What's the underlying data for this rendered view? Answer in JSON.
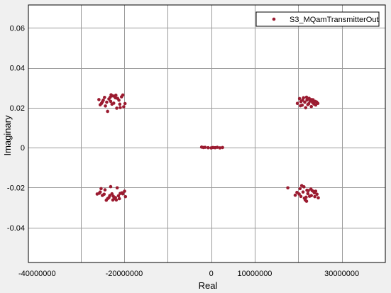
{
  "chart_data": {
    "type": "scatter",
    "title": "",
    "xlabel": "Real",
    "ylabel": "Imaginary",
    "xlim": [
      -42000000,
      40000000
    ],
    "ylim": [
      -0.0575,
      0.0715
    ],
    "grid": true,
    "legend_position": "top-right",
    "xticks": [
      -40000000,
      -20000000,
      0,
      10000000,
      30000000
    ],
    "xtick_labels": [
      "-40000000",
      "-20000000",
      "0",
      "10000000",
      "30000000"
    ],
    "xgrid": [
      -30000000,
      -20000000,
      -10000000,
      0,
      10000000,
      20000000,
      30000000
    ],
    "yticks": [
      -0.04,
      -0.02,
      0,
      0.02,
      0.04,
      0.06
    ],
    "ytick_labels": [
      "-0.04",
      "-0.02",
      "0",
      "0.02",
      "0.04",
      "0.06"
    ],
    "series": [
      {
        "name": "S3_MQamTransmitterOut",
        "color": "#9b1b30",
        "points": [
          [
            -25800000,
            0.0241
          ],
          [
            -25200000,
            0.0222
          ],
          [
            -24800000,
            0.0238
          ],
          [
            -25500000,
            0.0215
          ],
          [
            -24300000,
            0.0209
          ],
          [
            -24000000,
            0.0228
          ],
          [
            -23800000,
            0.0182
          ],
          [
            -23200000,
            0.0253
          ],
          [
            -23000000,
            0.0265
          ],
          [
            -22700000,
            0.026
          ],
          [
            -22300000,
            0.0258
          ],
          [
            -23100000,
            0.0232
          ],
          [
            -22800000,
            0.0218
          ],
          [
            -22000000,
            0.025
          ],
          [
            -21700000,
            0.0198
          ],
          [
            -21500000,
            0.0247
          ],
          [
            -21200000,
            0.0238
          ],
          [
            -21000000,
            0.0218
          ],
          [
            -20600000,
            0.0255
          ],
          [
            -20300000,
            0.0264
          ],
          [
            -20900000,
            0.0201
          ],
          [
            -19800000,
            0.0221
          ],
          [
            -24500000,
            0.0252
          ],
          [
            -23500000,
            0.0244
          ],
          [
            -22400000,
            0.0223
          ],
          [
            -20100000,
            0.0205
          ],
          [
            -25000000,
            0.023
          ],
          [
            -21900000,
            0.0263
          ],
          [
            -26200000,
            -0.0232
          ],
          [
            -25700000,
            -0.0228
          ],
          [
            -25300000,
            -0.0205
          ],
          [
            -25000000,
            -0.0239
          ],
          [
            -24600000,
            -0.0233
          ],
          [
            -24100000,
            -0.0263
          ],
          [
            -23800000,
            -0.0255
          ],
          [
            -23500000,
            -0.025
          ],
          [
            -23100000,
            -0.0195
          ],
          [
            -22800000,
            -0.0231
          ],
          [
            -22500000,
            -0.0243
          ],
          [
            -22300000,
            -0.0255
          ],
          [
            -22000000,
            -0.025
          ],
          [
            -21800000,
            -0.0262
          ],
          [
            -21600000,
            -0.0201
          ],
          [
            -21300000,
            -0.0241
          ],
          [
            -20900000,
            -0.0229
          ],
          [
            -20500000,
            -0.0226
          ],
          [
            -19900000,
            -0.0218
          ],
          [
            -19700000,
            -0.0245
          ],
          [
            -24400000,
            -0.0211
          ],
          [
            -23300000,
            -0.024
          ],
          [
            -22600000,
            -0.0262
          ],
          [
            -21100000,
            -0.0255
          ],
          [
            -25500000,
            -0.0222
          ],
          [
            -20300000,
            -0.0231
          ],
          [
            -2200000,
            0.0003
          ],
          [
            -1400000,
            0.0002
          ],
          [
            -700000,
            0.0
          ],
          [
            0,
            -0.0001
          ],
          [
            400000,
            0.0001
          ],
          [
            900000,
            0.0
          ],
          [
            1400000,
            0.0002
          ],
          [
            2000000,
            -0.0001
          ],
          [
            2600000,
            0.0001
          ],
          [
            -1800000,
            0.0001
          ],
          [
            19800000,
            0.0222
          ],
          [
            20300000,
            0.0246
          ],
          [
            20600000,
            0.0231
          ],
          [
            20900000,
            0.0213
          ],
          [
            21200000,
            0.025
          ],
          [
            21500000,
            0.0228
          ],
          [
            21700000,
            0.02
          ],
          [
            22000000,
            0.0239
          ],
          [
            22200000,
            0.0216
          ],
          [
            22500000,
            0.0247
          ],
          [
            22700000,
            0.0233
          ],
          [
            23000000,
            0.0206
          ],
          [
            23300000,
            0.0226
          ],
          [
            23600000,
            0.0219
          ],
          [
            23900000,
            0.0232
          ],
          [
            24200000,
            0.0229
          ],
          [
            24500000,
            0.0222
          ],
          [
            21000000,
            0.0238
          ],
          [
            22400000,
            0.022
          ],
          [
            23400000,
            0.024
          ],
          [
            20500000,
            0.021
          ],
          [
            21900000,
            0.0253
          ],
          [
            23100000,
            0.0241
          ],
          [
            24000000,
            0.0214
          ],
          [
            17600000,
            -0.0201
          ],
          [
            19300000,
            -0.0238
          ],
          [
            19700000,
            -0.0224
          ],
          [
            20200000,
            -0.0232
          ],
          [
            20600000,
            -0.0244
          ],
          [
            20800000,
            -0.019
          ],
          [
            21100000,
            -0.0222
          ],
          [
            21400000,
            -0.0253
          ],
          [
            21600000,
            -0.0262
          ],
          [
            21800000,
            -0.0248
          ],
          [
            22000000,
            -0.0213
          ],
          [
            22300000,
            -0.0215
          ],
          [
            22600000,
            -0.0243
          ],
          [
            22900000,
            -0.0207
          ],
          [
            23200000,
            -0.0215
          ],
          [
            23500000,
            -0.0219
          ],
          [
            23700000,
            -0.0226
          ],
          [
            24000000,
            -0.0218
          ],
          [
            24300000,
            -0.0233
          ],
          [
            24600000,
            -0.0251
          ],
          [
            21300000,
            -0.0196
          ],
          [
            22200000,
            -0.023
          ],
          [
            23000000,
            -0.024
          ],
          [
            20400000,
            -0.0205
          ],
          [
            21900000,
            -0.0268
          ],
          [
            23800000,
            -0.0245
          ]
        ]
      }
    ]
  }
}
